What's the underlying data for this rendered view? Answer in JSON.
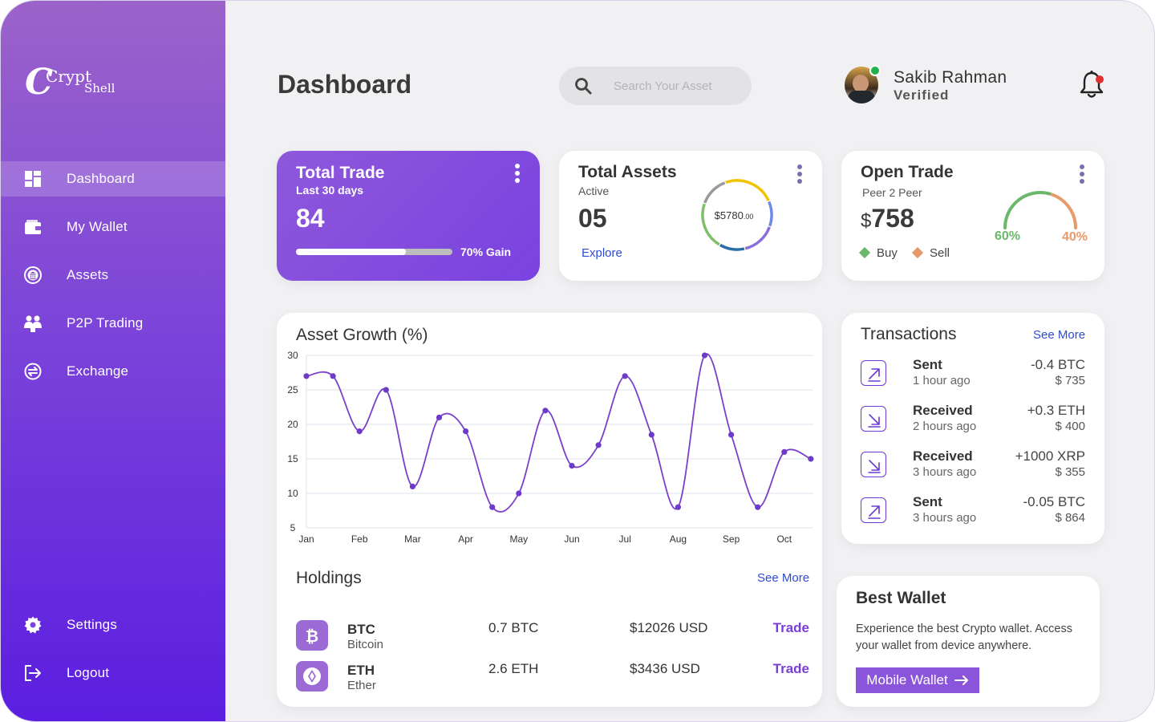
{
  "app": {
    "logo_primary": "Crypt",
    "logo_secondary": "Shell",
    "page_title": "Dashboard"
  },
  "sidebar": {
    "items": [
      {
        "label": "Dashboard",
        "icon": "grid-icon",
        "active": true
      },
      {
        "label": "My Wallet",
        "icon": "wallet-icon"
      },
      {
        "label": "Assets",
        "icon": "bank-icon"
      },
      {
        "label": "P2P Trading",
        "icon": "people-icon"
      },
      {
        "label": "Exchange",
        "icon": "exchange-icon"
      }
    ],
    "bottom_items": [
      {
        "label": "Settings",
        "icon": "gear-icon"
      },
      {
        "label": "Logout",
        "icon": "logout-icon"
      }
    ]
  },
  "search": {
    "placeholder": "Search Your Asset",
    "value": ""
  },
  "user": {
    "name": "Sakib Rahman",
    "status": "Verified"
  },
  "total_trade": {
    "title": "Total Trade",
    "subtitle": "Last 30 days",
    "value": "84",
    "progress": 0.7,
    "gain_label": "70% Gain"
  },
  "total_assets": {
    "title": "Total Assets",
    "subtitle": "Active",
    "value": "05",
    "link": "Explore",
    "donut_value": "$5780",
    "donut_cents": ".00",
    "donut_segments": [
      {
        "color": "#f2c300",
        "fraction": 0.24
      },
      {
        "color": "#6e8be8",
        "fraction": 0.12
      },
      {
        "color": "#8a6fd8",
        "fraction": 0.16
      },
      {
        "color": "#2a6ea6",
        "fraction": 0.12
      },
      {
        "color": "#7fbf6a",
        "fraction": 0.22
      },
      {
        "color": "#9a9a9a",
        "fraction": 0.14
      }
    ]
  },
  "open_trade": {
    "title": "Open Trade",
    "subtitle": "Peer 2 Peer",
    "currency": "$",
    "value": "758",
    "buy_label": "Buy",
    "sell_label": "Sell",
    "buy_pct": "60%",
    "sell_pct": "40%",
    "buy_fraction": 0.6,
    "buy_color": "#6cb86a",
    "sell_color": "#e89a6a"
  },
  "chart_data": {
    "type": "line",
    "title": "Asset Growth (%)",
    "xlabel": "",
    "ylabel": "",
    "categories": [
      "Jan",
      "Feb",
      "Mar",
      "Apr",
      "May",
      "Jun",
      "Jul",
      "Aug",
      "Sep",
      "Oct"
    ],
    "yticks": [
      30,
      25,
      20,
      15,
      10,
      5
    ],
    "ylim": [
      5,
      30
    ],
    "grid": true,
    "series": [
      {
        "color": "#7b3fc9",
        "points": [
          [
            0,
            27
          ],
          [
            0.5,
            27
          ],
          [
            1,
            19
          ],
          [
            1.5,
            25
          ],
          [
            2,
            11
          ],
          [
            2.5,
            21
          ],
          [
            3,
            19
          ],
          [
            3.5,
            8
          ],
          [
            4,
            10
          ],
          [
            4.5,
            22
          ],
          [
            5,
            14
          ],
          [
            5.5,
            17
          ],
          [
            6,
            27
          ],
          [
            6.5,
            18.5
          ],
          [
            7,
            8
          ],
          [
            7.5,
            30
          ],
          [
            8,
            18.5
          ],
          [
            8.5,
            8
          ],
          [
            9,
            16
          ],
          [
            9.5,
            15
          ]
        ]
      }
    ]
  },
  "transactions": {
    "title": "Transactions",
    "link": "See More",
    "rows": [
      {
        "type": "Sent",
        "time": "1 hour ago",
        "amount": "-0.4 BTC",
        "usd": "$ 735",
        "dir": "sent"
      },
      {
        "type": "Received",
        "time": "2 hours ago",
        "amount": "+0.3 ETH",
        "usd": "$ 400",
        "dir": "received"
      },
      {
        "type": "Received",
        "time": "3 hours ago",
        "amount": "+1000 XRP",
        "usd": "$ 355",
        "dir": "received"
      },
      {
        "type": "Sent",
        "time": "3 hours ago",
        "amount": "-0.05 BTC",
        "usd": "$ 864",
        "dir": "sent"
      }
    ]
  },
  "holdings": {
    "title": "Holdings",
    "link": "See More",
    "rows": [
      {
        "symbol": "BTC",
        "name": "Bitcoin",
        "qty": "0.7 BTC",
        "usd": "$12026 USD",
        "action": "Trade",
        "icon": "bitcoin-icon"
      },
      {
        "symbol": "ETH",
        "name": "Ether",
        "qty": "2.6 ETH",
        "usd": "$3436 USD",
        "action": "Trade",
        "icon": "ethereum-icon"
      }
    ]
  },
  "best_wallet": {
    "title": "Best Wallet",
    "desc_line1": "Experience the best Crypto wallet. Access",
    "desc_line2": "your wallet from device anywhere.",
    "button": "Mobile Wallet"
  },
  "colors": {
    "accent": "#7a42e0",
    "sidebar_top": "#9b63c9",
    "sidebar_bottom": "#5b1ee0",
    "link": "#2e4bd4"
  }
}
